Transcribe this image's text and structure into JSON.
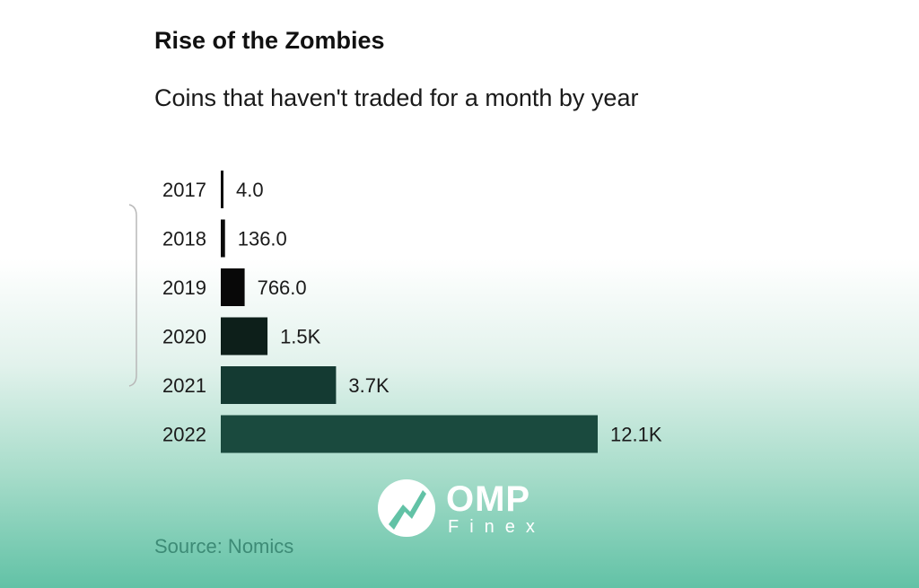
{
  "chart_data": {
    "type": "bar",
    "orientation": "horizontal",
    "title": "Rise of the Zombies",
    "subtitle": "Coins that haven't traded for a month by year",
    "categories": [
      "2017",
      "2018",
      "2019",
      "2020",
      "2021",
      "2022"
    ],
    "values": [
      4,
      136,
      766,
      1500,
      3700,
      12100
    ],
    "value_labels": [
      "4.0",
      "136.0",
      "766.0",
      "1.5K",
      "3.7K",
      "12.1K"
    ],
    "bar_colors": [
      "#0b0b0b",
      "#0b0b0b",
      "#080808",
      "#0d1f1a",
      "#143a32",
      "#1a4a3e"
    ],
    "grid": false,
    "legend": "none"
  },
  "source": "Source: Nomics",
  "watermark": {
    "name": "OMP",
    "sub": "Finex",
    "icon": "omp-logo-icon"
  }
}
